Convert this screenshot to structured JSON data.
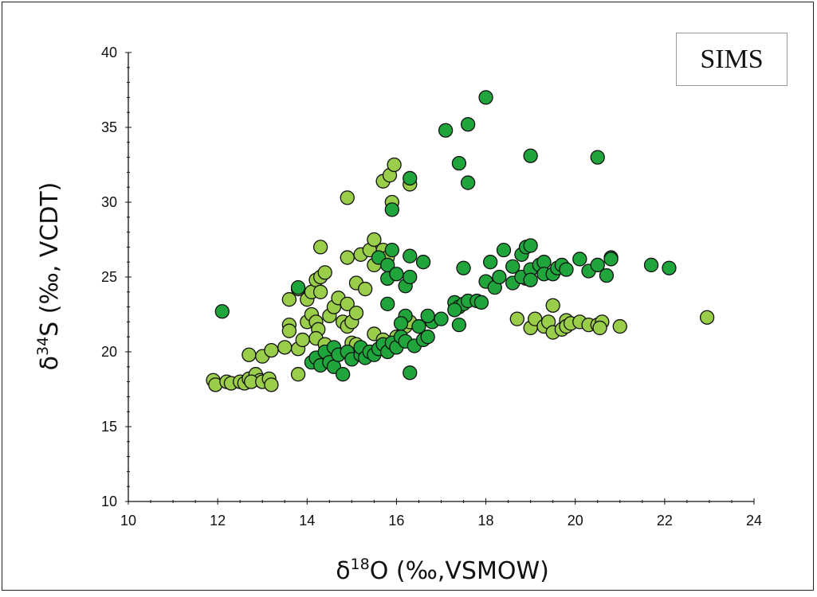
{
  "chart_data": {
    "type": "scatter",
    "annotation": "SIMS",
    "xlabel": {
      "delta": "δ",
      "sup": "18",
      "rest": "O (‰,VSMOW)"
    },
    "ylabel": {
      "delta": "δ",
      "sup": "34",
      "rest": "S (‰, VCDT)"
    },
    "xlim": [
      10,
      24
    ],
    "ylim": [
      10,
      40
    ],
    "xticks": [
      10,
      12,
      14,
      16,
      18,
      20,
      22,
      24
    ],
    "yticks": [
      10,
      15,
      20,
      25,
      30,
      35,
      40
    ],
    "colors": {
      "light": "#9ACD49",
      "dark": "#1FA53C",
      "edge": "#111111"
    },
    "series": [
      {
        "color": "#9ACD49",
        "points": [
          [
            11.9,
            18.1
          ],
          [
            11.95,
            17.8
          ],
          [
            12.2,
            18.0
          ],
          [
            12.3,
            17.9
          ],
          [
            12.5,
            18.0
          ],
          [
            12.6,
            17.9
          ],
          [
            12.7,
            18.2
          ],
          [
            12.85,
            18.5
          ],
          [
            12.95,
            18.1
          ],
          [
            12.75,
            18.0
          ],
          [
            13.0,
            18.0
          ],
          [
            13.15,
            18.2
          ],
          [
            13.2,
            17.8
          ],
          [
            12.7,
            19.8
          ],
          [
            13.0,
            19.7
          ],
          [
            13.2,
            20.1
          ],
          [
            13.5,
            20.3
          ],
          [
            13.6,
            21.8
          ],
          [
            13.6,
            21.4
          ],
          [
            13.8,
            20.2
          ],
          [
            13.9,
            20.8
          ],
          [
            14.0,
            22.0
          ],
          [
            14.1,
            22.5
          ],
          [
            14.2,
            22.0
          ],
          [
            14.25,
            21.5
          ],
          [
            14.2,
            20.9
          ],
          [
            14.4,
            20.5
          ],
          [
            13.8,
            18.5
          ],
          [
            13.6,
            23.5
          ],
          [
            13.8,
            24.2
          ],
          [
            14.0,
            23.5
          ],
          [
            14.1,
            24.0
          ],
          [
            14.2,
            24.8
          ],
          [
            14.3,
            25.0
          ],
          [
            14.3,
            24.0
          ],
          [
            14.4,
            25.3
          ],
          [
            14.5,
            22.4
          ],
          [
            14.6,
            23.0
          ],
          [
            14.7,
            23.6
          ],
          [
            14.8,
            22.0
          ],
          [
            14.9,
            23.2
          ],
          [
            14.9,
            21.7
          ],
          [
            15.0,
            22.0
          ],
          [
            15.1,
            22.6
          ],
          [
            14.3,
            27.0
          ],
          [
            14.9,
            26.3
          ],
          [
            15.1,
            24.6
          ],
          [
            15.2,
            26.5
          ],
          [
            15.4,
            26.8
          ],
          [
            15.3,
            24.2
          ],
          [
            15.5,
            27.5
          ],
          [
            15.5,
            25.8
          ],
          [
            15.7,
            26.8
          ],
          [
            15.8,
            26.3
          ],
          [
            15.0,
            20.6
          ],
          [
            15.1,
            20.5
          ],
          [
            15.5,
            21.2
          ],
          [
            15.7,
            20.8
          ],
          [
            16.0,
            21.0
          ],
          [
            16.2,
            21.7
          ],
          [
            14.9,
            30.3
          ],
          [
            15.7,
            31.4
          ],
          [
            15.85,
            31.8
          ],
          [
            15.95,
            32.5
          ],
          [
            15.9,
            30.0
          ],
          [
            16.3,
            31.2
          ],
          [
            16.3,
            22.0
          ],
          [
            18.9,
            24.9
          ],
          [
            18.7,
            22.2
          ],
          [
            19.0,
            21.6
          ],
          [
            19.1,
            22.2
          ],
          [
            19.3,
            21.7
          ],
          [
            19.4,
            22.0
          ],
          [
            19.5,
            21.3
          ],
          [
            19.5,
            23.1
          ],
          [
            19.7,
            21.5
          ],
          [
            19.8,
            22.1
          ],
          [
            19.8,
            21.7
          ],
          [
            19.9,
            21.9
          ],
          [
            20.1,
            22.0
          ],
          [
            20.3,
            21.8
          ],
          [
            20.5,
            21.8
          ],
          [
            20.6,
            22.0
          ],
          [
            20.55,
            21.6
          ],
          [
            21.0,
            21.7
          ],
          [
            22.95,
            22.3
          ]
        ]
      },
      {
        "color": "#1FA53C",
        "points": [
          [
            12.1,
            22.7
          ],
          [
            13.8,
            24.3
          ],
          [
            14.1,
            19.3
          ],
          [
            14.2,
            19.6
          ],
          [
            14.3,
            19.1
          ],
          [
            14.4,
            20.0
          ],
          [
            14.5,
            19.3
          ],
          [
            14.6,
            20.3
          ],
          [
            14.6,
            19.0
          ],
          [
            14.7,
            19.8
          ],
          [
            14.8,
            18.5
          ],
          [
            14.9,
            20.0
          ],
          [
            15.0,
            19.5
          ],
          [
            15.2,
            19.8
          ],
          [
            15.2,
            20.3
          ],
          [
            15.3,
            19.6
          ],
          [
            15.4,
            20.0
          ],
          [
            15.5,
            19.8
          ],
          [
            15.6,
            20.2
          ],
          [
            15.7,
            20.5
          ],
          [
            15.8,
            20.0
          ],
          [
            15.9,
            20.6
          ],
          [
            16.0,
            20.3
          ],
          [
            16.1,
            21.0
          ],
          [
            16.2,
            20.7
          ],
          [
            16.3,
            18.6
          ],
          [
            16.4,
            20.4
          ],
          [
            16.5,
            21.7
          ],
          [
            16.6,
            20.8
          ],
          [
            16.7,
            21.0
          ],
          [
            16.8,
            22.0
          ],
          [
            17.0,
            22.2
          ],
          [
            16.7,
            22.4
          ],
          [
            17.3,
            23.3
          ],
          [
            17.4,
            23.0
          ],
          [
            17.5,
            23.2
          ],
          [
            17.6,
            23.4
          ],
          [
            17.8,
            23.4
          ],
          [
            17.4,
            21.8
          ],
          [
            17.3,
            22.8
          ],
          [
            17.9,
            23.3
          ],
          [
            18.0,
            24.7
          ],
          [
            18.2,
            24.3
          ],
          [
            18.1,
            26.0
          ],
          [
            18.3,
            25.0
          ],
          [
            18.4,
            26.8
          ],
          [
            18.6,
            24.6
          ],
          [
            18.6,
            25.7
          ],
          [
            18.8,
            25.0
          ],
          [
            18.8,
            26.5
          ],
          [
            18.9,
            27.0
          ],
          [
            19.0,
            25.5
          ],
          [
            19.0,
            24.8
          ],
          [
            19.0,
            27.1
          ],
          [
            19.2,
            25.8
          ],
          [
            19.3,
            26.0
          ],
          [
            19.3,
            25.2
          ],
          [
            19.5,
            25.2
          ],
          [
            19.6,
            25.6
          ],
          [
            19.7,
            25.8
          ],
          [
            19.8,
            25.5
          ],
          [
            20.1,
            26.2
          ],
          [
            20.3,
            25.4
          ],
          [
            20.5,
            25.8
          ],
          [
            20.7,
            25.1
          ],
          [
            20.8,
            26.3
          ],
          [
            20.8,
            26.2
          ],
          [
            21.7,
            25.8
          ],
          [
            22.1,
            25.6
          ],
          [
            15.6,
            26.3
          ],
          [
            15.8,
            25.8
          ],
          [
            15.8,
            24.9
          ],
          [
            15.9,
            26.8
          ],
          [
            16.0,
            25.2
          ],
          [
            16.2,
            24.4
          ],
          [
            16.3,
            25.0
          ],
          [
            16.3,
            26.4
          ],
          [
            16.6,
            26.0
          ],
          [
            16.2,
            22.4
          ],
          [
            15.8,
            23.2
          ],
          [
            16.1,
            21.9
          ],
          [
            15.9,
            29.5
          ],
          [
            16.3,
            31.6
          ],
          [
            17.1,
            34.8
          ],
          [
            17.4,
            32.6
          ],
          [
            17.6,
            35.2
          ],
          [
            17.6,
            31.3
          ],
          [
            17.5,
            25.6
          ],
          [
            18.0,
            37.0
          ],
          [
            19.0,
            33.1
          ],
          [
            20.5,
            33.0
          ]
        ]
      }
    ]
  }
}
